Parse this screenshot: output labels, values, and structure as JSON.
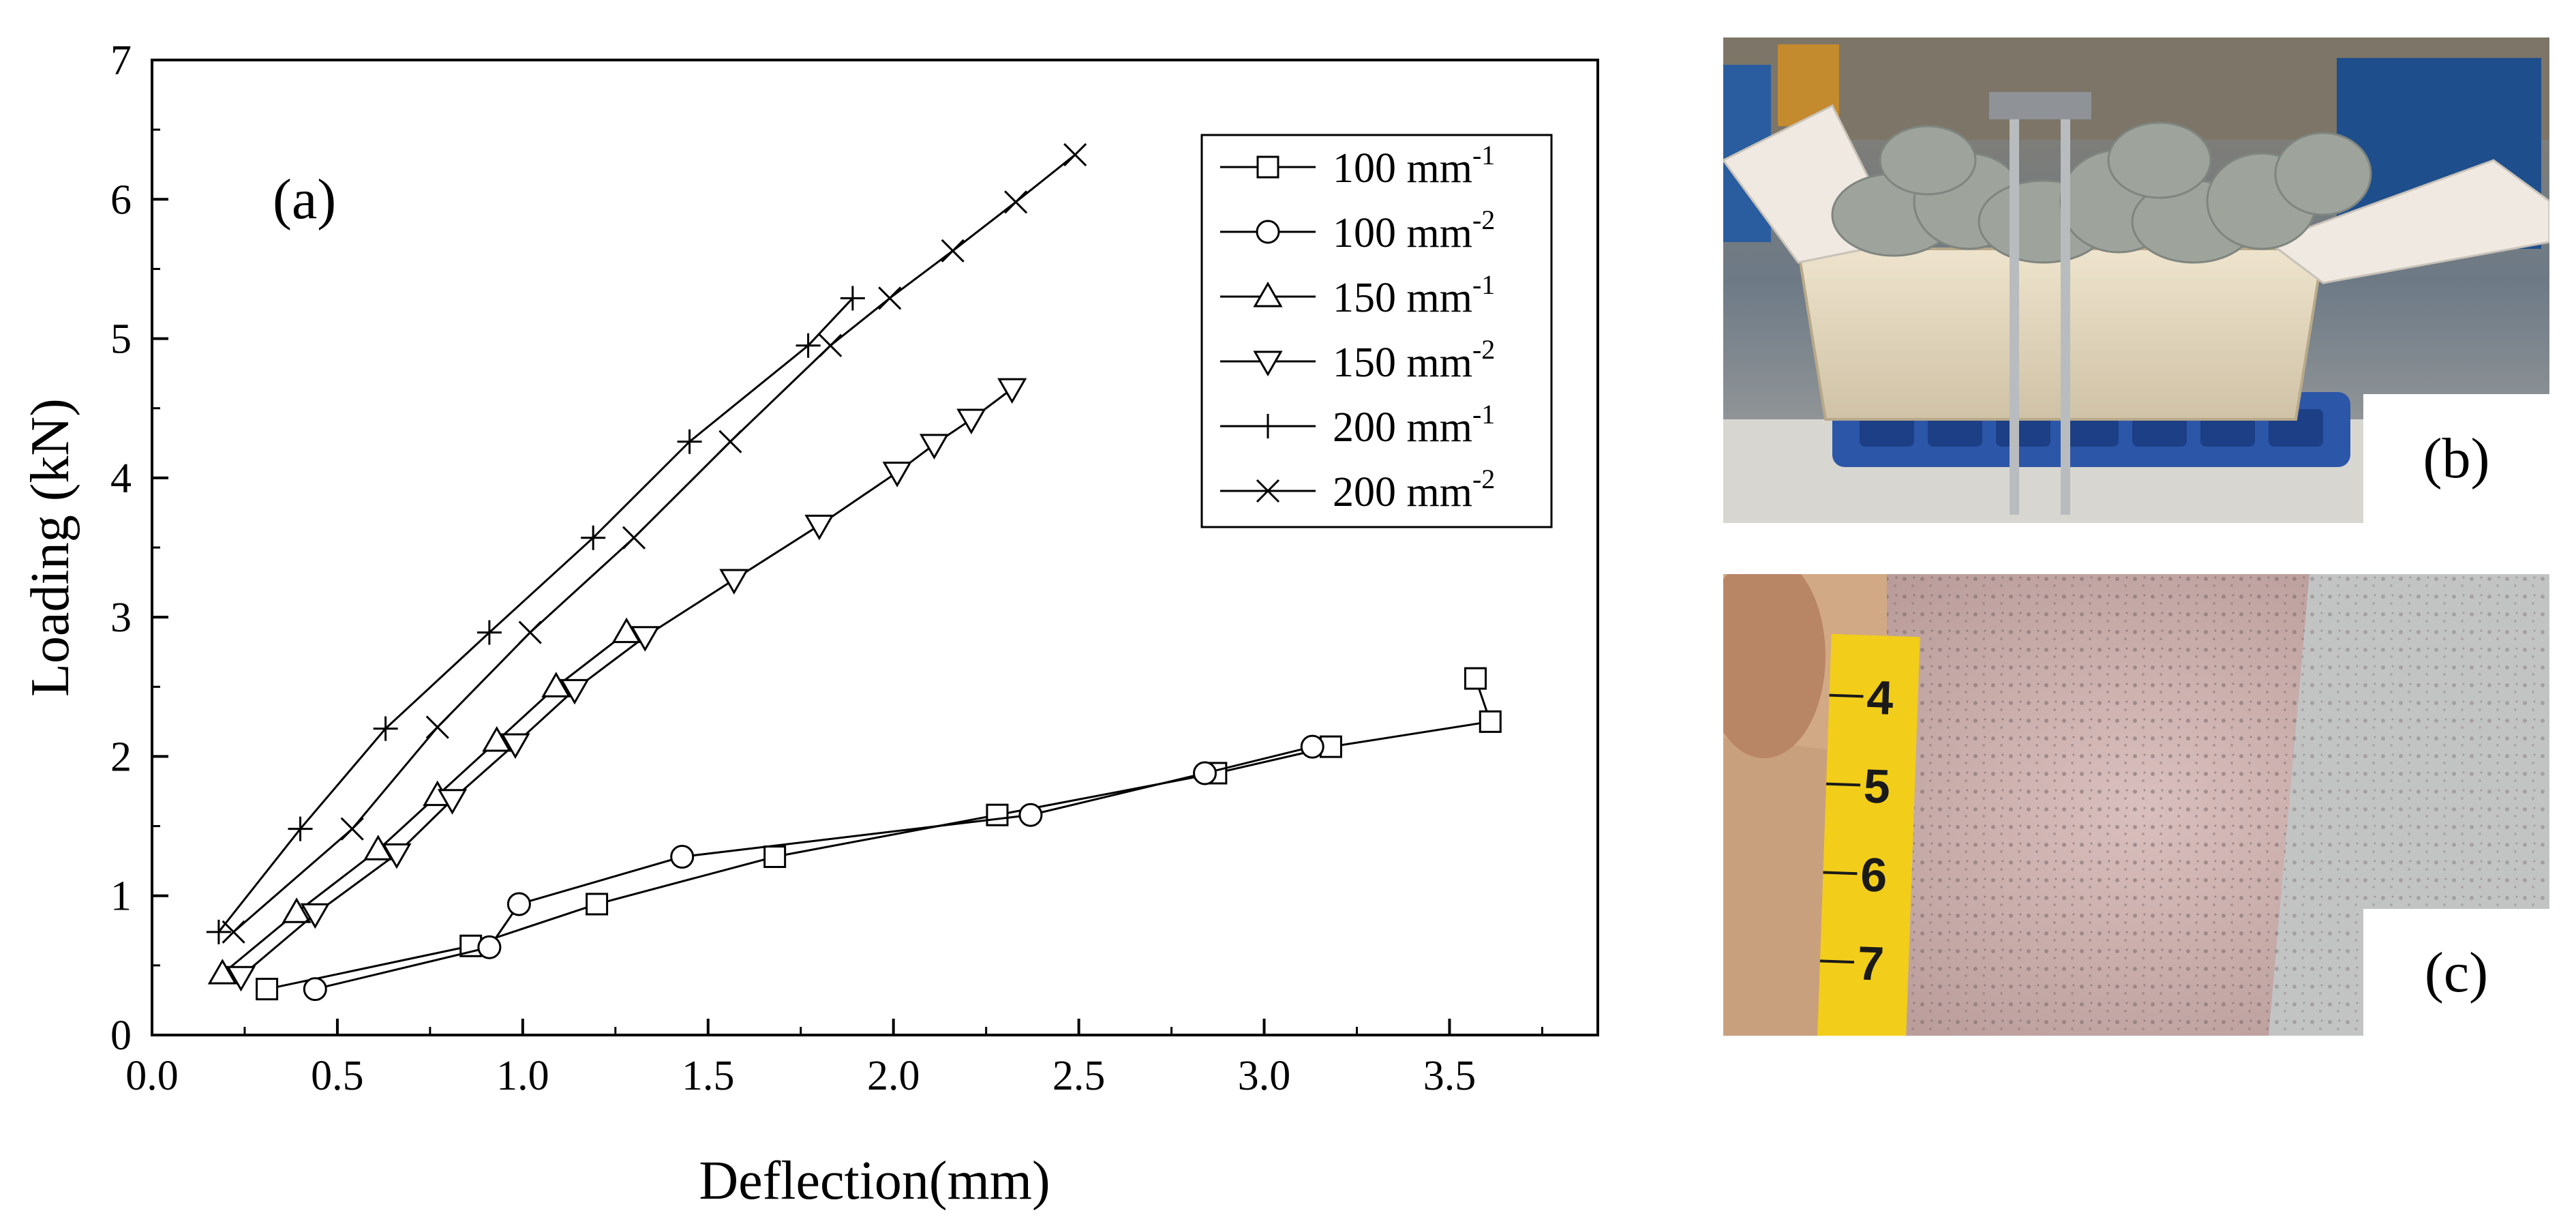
{
  "chart_data": {
    "type": "line",
    "panel_label": "(a)",
    "xlabel": "Deflection(mm)",
    "ylabel": "Loading (kN)",
    "xlim": [
      0.0,
      3.9
    ],
    "ylim": [
      0,
      7
    ],
    "xticks": [
      "0.0",
      "0.5",
      "1.0",
      "1.5",
      "2.0",
      "2.5",
      "3.0",
      "3.5"
    ],
    "yticks": [
      "0",
      "1",
      "2",
      "3",
      "4",
      "5",
      "6",
      "7"
    ],
    "grid": false,
    "legend_position": "top-right",
    "series": [
      {
        "base": "100 mm",
        "sup": "-1",
        "marker": "square",
        "x": [
          0.31,
          0.86,
          1.2,
          1.68,
          2.28,
          2.87,
          3.18,
          3.61,
          3.57
        ],
        "y": [
          0.33,
          0.64,
          0.94,
          1.28,
          1.58,
          1.88,
          2.07,
          2.25,
          2.56
        ]
      },
      {
        "base": "100 mm",
        "sup": "-2",
        "marker": "circle",
        "x": [
          0.44,
          0.91,
          0.99,
          1.43,
          2.37,
          2.84,
          3.13
        ],
        "y": [
          0.33,
          0.63,
          0.94,
          1.28,
          1.58,
          1.88,
          2.07
        ]
      },
      {
        "base": "150 mm",
        "sup": "-1",
        "marker": "triangle-up",
        "x": [
          0.19,
          0.39,
          0.61,
          0.77,
          0.93,
          1.09,
          1.28
        ],
        "y": [
          0.44,
          0.88,
          1.33,
          1.72,
          2.11,
          2.5,
          2.89
        ]
      },
      {
        "base": "150 mm",
        "sup": "-2",
        "marker": "triangle-down",
        "x": [
          0.24,
          0.44,
          0.66,
          0.81,
          0.98,
          1.14,
          1.33,
          1.57,
          1.8,
          2.01,
          2.11,
          2.21,
          2.32
        ],
        "y": [
          0.42,
          0.87,
          1.3,
          1.69,
          2.09,
          2.48,
          2.86,
          3.27,
          3.66,
          4.04,
          4.24,
          4.42,
          4.64
        ]
      },
      {
        "base": "200 mm",
        "sup": "-1",
        "marker": "plus",
        "x": [
          0.18,
          0.4,
          0.63,
          0.91,
          1.19,
          1.45,
          1.77,
          1.89
        ],
        "y": [
          0.74,
          1.48,
          2.2,
          2.89,
          3.57,
          4.26,
          4.95,
          5.29
        ]
      },
      {
        "base": "200 mm",
        "sup": "-2",
        "marker": "x",
        "x": [
          0.22,
          0.54,
          0.77,
          1.02,
          1.3,
          1.56,
          1.83,
          1.99,
          2.16,
          2.33,
          2.49
        ],
        "y": [
          0.74,
          1.48,
          2.21,
          2.89,
          3.57,
          4.26,
          4.95,
          5.29,
          5.63,
          5.98,
          6.32
        ]
      }
    ]
  },
  "photos": {
    "b": {
      "label": "(b)"
    },
    "c": {
      "label": "(c)"
    }
  }
}
